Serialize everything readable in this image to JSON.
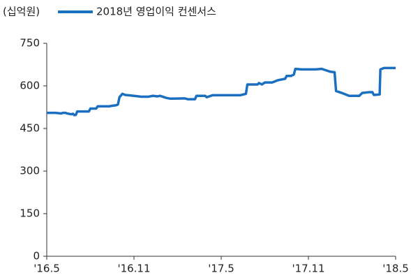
{
  "chart_data": {
    "type": "line",
    "unit_label": "(십억원)",
    "series": [
      {
        "name": "2018년 영업이익 컨센서스",
        "color": "#1a6fc0",
        "x": [
          0,
          0.6,
          1.0,
          1.1,
          1.3,
          1.4,
          1.7,
          1.8,
          1.9,
          2.0,
          2.1,
          2.9,
          3.0,
          3.4,
          3.5,
          4.3,
          4.5,
          4.8,
          4.9,
          5.0,
          5.2,
          5.4,
          5.6,
          6.0,
          6.5,
          7.0,
          7.3,
          7.6,
          7.8,
          8.2,
          8.5,
          9.5,
          9.7,
          10.2,
          10.3,
          10.9,
          11.0,
          11.4,
          13.0,
          13.3,
          13.7,
          13.8,
          14.5,
          14.6,
          14.8,
          15.0,
          15.5,
          15.9,
          16.4,
          16.5,
          16.8,
          17.0,
          17.1,
          17.5,
          17.9,
          18.5,
          18.9,
          19.2,
          19.5,
          19.8,
          19.9,
          20.3,
          20.8,
          21.5,
          21.7,
          22.2,
          22.4,
          22.5,
          22.9,
          22.95,
          23.2,
          24.0
        ],
        "values": [
          505,
          505,
          503,
          505,
          505,
          503,
          500,
          502,
          497,
          498,
          510,
          510,
          520,
          520,
          528,
          528,
          530,
          532,
          535,
          560,
          572,
          568,
          567,
          565,
          562,
          562,
          565,
          563,
          565,
          558,
          555,
          556,
          553,
          553,
          565,
          565,
          560,
          567,
          567,
          567,
          572,
          605,
          605,
          610,
          605,
          612,
          612,
          620,
          625,
          635,
          635,
          640,
          660,
          658,
          658,
          658,
          660,
          655,
          650,
          648,
          582,
          575,
          565,
          565,
          575,
          578,
          578,
          568,
          570,
          658,
          663,
          663
        ]
      }
    ],
    "xlim": [
      0,
      24
    ],
    "xticks": [
      {
        "value": 0,
        "label": "'16.5"
      },
      {
        "value": 6,
        "label": "'16.11"
      },
      {
        "value": 12,
        "label": "'17.5"
      },
      {
        "value": 18,
        "label": "'17.11"
      },
      {
        "value": 24,
        "label": "'18.5"
      }
    ],
    "ylim": [
      0,
      750
    ],
    "yticks": [
      0,
      150,
      300,
      450,
      600,
      750
    ]
  }
}
